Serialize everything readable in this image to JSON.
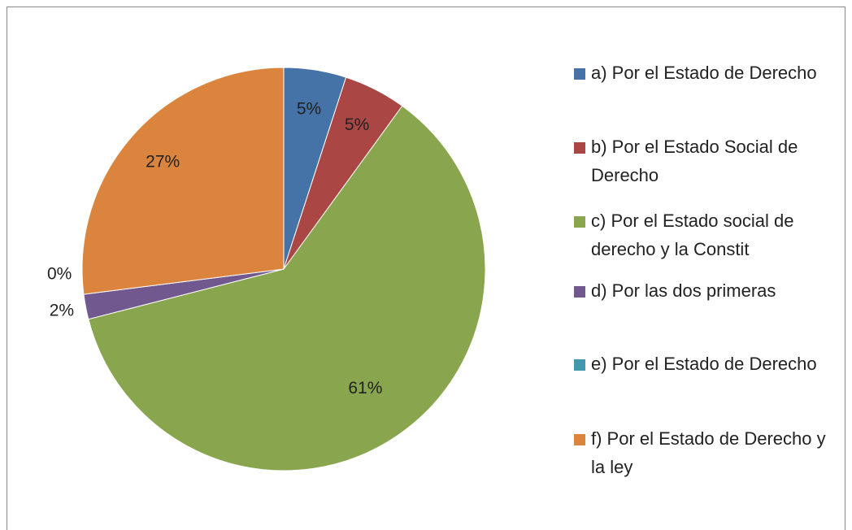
{
  "chart_data": {
    "type": "pie",
    "categories": [
      "a) Por el Estado de Derecho",
      "b) Por el Estado Social de Derecho",
      "c) Por el Estado social de derecho y la Constit",
      "d) Por las dos primeras",
      "e) Por el Estado de Derecho",
      "f) Por el Estado de Derecho y la ley"
    ],
    "values": [
      5,
      5,
      61,
      2,
      0,
      27
    ],
    "value_labels": [
      "5%",
      "5%",
      "61%",
      "2%",
      "0%",
      "27%"
    ],
    "colors": [
      "#4572a7",
      "#aa4643",
      "#89a54e",
      "#71588f",
      "#4198af",
      "#db843d"
    ],
    "legend": "right"
  }
}
